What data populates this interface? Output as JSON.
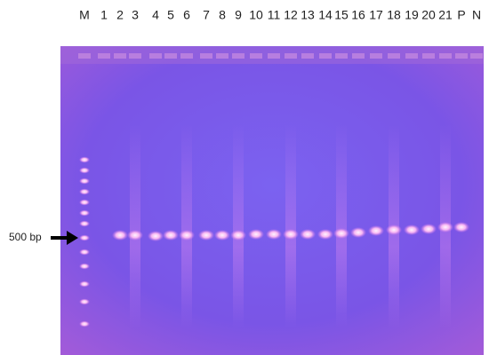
{
  "lane_labels": [
    "M",
    "1",
    "2",
    "3",
    "4",
    "5",
    "6",
    "7",
    "8",
    "9",
    "10",
    "11",
    "12",
    "13",
    "14",
    "15",
    "16",
    "17",
    "18",
    "19",
    "20",
    "21",
    "P",
    "N"
  ],
  "marker_label": "500 bp"
}
